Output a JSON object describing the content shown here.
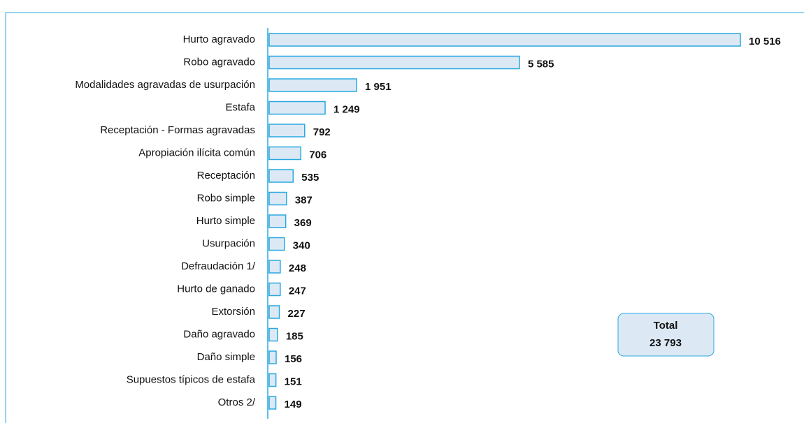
{
  "chart_data": {
    "type": "bar",
    "orientation": "horizontal",
    "categories": [
      "Hurto agravado",
      "Robo agravado",
      "Modalidades agravadas de usurpación",
      "Estafa",
      "Receptación - Formas agravadas",
      "Apropiación ilícita común",
      "Receptación",
      "Robo simple",
      "Hurto simple",
      "Usurpación",
      "Defraudación 1/",
      "Hurto de ganado",
      "Extorsión",
      "Daño agravado",
      "Daño simple",
      "Supuestos típicos de estafa",
      "Otros 2/"
    ],
    "values": [
      10516,
      5585,
      1951,
      1249,
      792,
      706,
      535,
      387,
      369,
      340,
      248,
      247,
      227,
      185,
      156,
      151,
      149
    ],
    "value_labels": [
      "10 516",
      "5 585",
      "1 951",
      "1 249",
      "792",
      "706",
      "535",
      "387",
      "369",
      "340",
      "248",
      "247",
      "227",
      "185",
      "156",
      "151",
      "149"
    ],
    "color": "#dce9f5",
    "edge_color": "#29a8e0",
    "annotation": {
      "label": "Total",
      "value": 23793,
      "value_label": "23 793"
    }
  }
}
